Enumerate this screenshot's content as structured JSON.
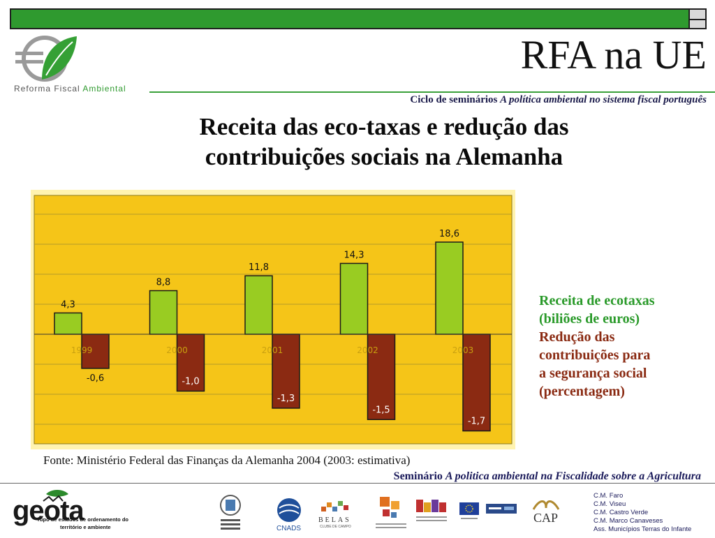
{
  "header": {
    "title": "RFA na UE",
    "subtitle_prefix": "Ciclo de seminários ",
    "subtitle_italic": "A política ambiental no sistema fiscal português",
    "logo_text_1": "Reforma Fiscal ",
    "logo_text_2": "Ambiental"
  },
  "heading": {
    "line1": "Receita das eco-taxas e redução das",
    "line2": "contribuições sociais na Alemanha"
  },
  "chart_data": {
    "type": "bar",
    "categories": [
      "1999",
      "2000",
      "2001",
      "2002",
      "2003"
    ],
    "series": [
      {
        "name": "Receita de ecotaxas (biliões de euros)",
        "values": [
          4.3,
          8.8,
          11.8,
          14.3,
          18.6
        ],
        "labels": [
          "4,3",
          "8,8",
          "11,8",
          "14,3",
          "18,6"
        ],
        "color": "#99cc22"
      },
      {
        "name": "Redução das contribuições para a segurança social (percentagem)",
        "values": [
          -0.6,
          -1.0,
          -1.3,
          -1.5,
          -1.7
        ],
        "labels": [
          "-0,6",
          "-1,0",
          "-1,3",
          "-1,5",
          "-1,7"
        ],
        "color": "#8b2a12"
      }
    ],
    "background": "#f5c518",
    "grid": true
  },
  "legend": {
    "green_lines": [
      "Receita de ecotaxas",
      "(biliões de euros)"
    ],
    "red_lines": [
      "Redução das",
      "contribuições para",
      "a segurança social",
      "(percentagem)"
    ]
  },
  "source": "Fonte: Ministério Federal das Finanças da Alemanha 2004 (2003: estimativa)",
  "seminar": {
    "prefix": "Seminário ",
    "italic": "A politica ambiental na Fiscalidade sobre a Agricultura"
  },
  "footer": {
    "geota_text": "geota",
    "geota_sub_1": "rupo de estudos de ordenamento do",
    "geota_sub_2": "território e ambiente",
    "cnads": "CNADS",
    "belas": "BELAS",
    "belas_sub": "CLUBE DE CAMPO",
    "cap": "CAP",
    "partners": [
      "C.M. Faro",
      "C.M. Viseu",
      "C.M. Castro Verde",
      "C.M. Marco Canaveses",
      "Ass. Municípios Terras do Infante"
    ]
  }
}
